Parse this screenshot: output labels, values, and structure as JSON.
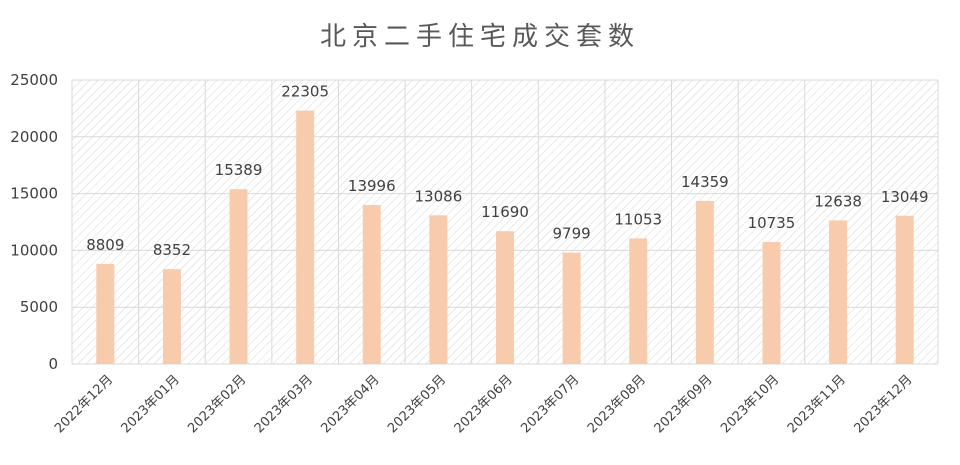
{
  "chart_data": {
    "type": "bar",
    "title": "北京二手住宅成交套数",
    "xlabel": "",
    "ylabel": "",
    "categories": [
      "2022年12月",
      "2023年01月",
      "2023年02月",
      "2023年03月",
      "2023年04月",
      "2023年05月",
      "2023年06月",
      "2023年07月",
      "2023年08月",
      "2023年09月",
      "2023年10月",
      "2023年11月",
      "2023年12月"
    ],
    "values": [
      8809,
      8352,
      15389,
      22305,
      13996,
      13086,
      11690,
      9799,
      11053,
      14359,
      10735,
      12638,
      13049
    ],
    "ylim": [
      0,
      25000
    ],
    "yticks": [
      0,
      5000,
      10000,
      15000,
      20000,
      25000
    ],
    "grid": true,
    "legend": "none",
    "colors": {
      "bar": "#F8CBAD",
      "grid": "#D9D9D9",
      "text": "#404040",
      "title": "#595959"
    }
  }
}
